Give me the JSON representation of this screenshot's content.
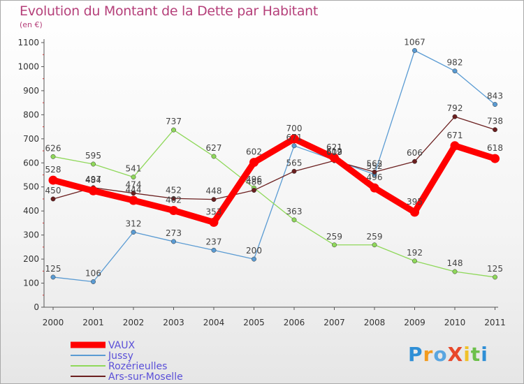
{
  "title": "Evolution du Montant de la Dette par Habitant",
  "subtitle": "(en €)",
  "logo_text": "ProXiti",
  "chart_data": {
    "type": "line",
    "categories": [
      "2000",
      "2001",
      "2002",
      "2003",
      "2004",
      "2005",
      "2006",
      "2007",
      "2008",
      "2009",
      "2010",
      "2011"
    ],
    "ylim": [
      0,
      1100
    ],
    "yticks": [
      0,
      100,
      200,
      300,
      400,
      500,
      600,
      700,
      800,
      900,
      1000,
      1100
    ],
    "grid": false,
    "legend_position": "bottom-left",
    "series": [
      {
        "name": "VAUX",
        "color": "#ff0000",
        "values": [
          528,
          484,
          444,
          402,
          353,
          602,
          700,
          621,
          496,
          395,
          671,
          618
        ]
      },
      {
        "name": "Jussy",
        "color": "#5a9bd3",
        "values": [
          125,
          106,
          312,
          273,
          237,
          200,
          671,
          612,
          552,
          1067,
          982,
          843
        ]
      },
      {
        "name": "Rozérieulles",
        "color": "#8fd85a",
        "values": [
          626,
          595,
          541,
          737,
          627,
          496,
          363,
          259,
          259,
          192,
          148,
          125
        ]
      },
      {
        "name": "Ars-sur-Moselle",
        "color": "#6b1f1f",
        "values": [
          450,
          497,
          474,
          452,
          448,
          486,
          565,
          609,
          562,
          606,
          792,
          738
        ]
      }
    ]
  }
}
